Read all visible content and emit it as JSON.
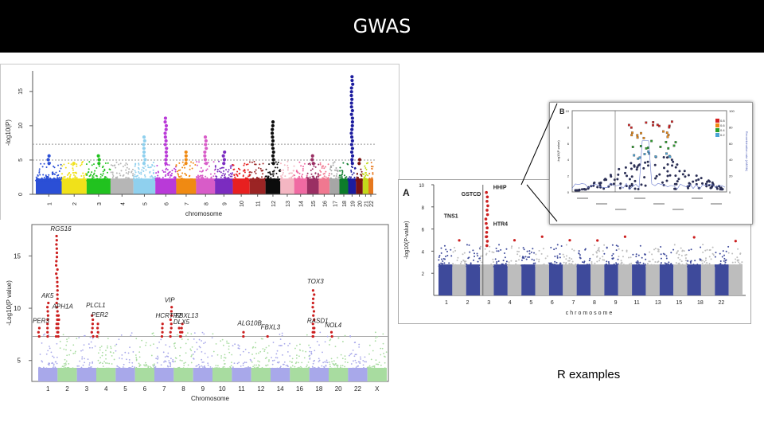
{
  "page": {
    "title": "GWAS",
    "caption": "R examples"
  },
  "colors": {
    "title_bg": "#000000",
    "title_fg": "#ffffff",
    "peak_red": "#cc1f1f",
    "blue": "#3e4a9b",
    "grey": "#bdbdbd"
  },
  "chart_data": [
    {
      "id": "panel-1",
      "type": "scatter",
      "subtype": "manhattan",
      "xlabel": "chromosome",
      "ylabel": "-log10(P)",
      "ylim": [
        0,
        18
      ],
      "yticks": [
        0,
        5,
        10,
        15
      ],
      "threshold_lines": [
        7.3,
        5
      ],
      "chromosomes": [
        "1",
        "2",
        "3",
        "4",
        "5",
        "6",
        "7",
        "8",
        "9",
        "10",
        "11",
        "12",
        "13",
        "14",
        "15",
        "16",
        "17",
        "18",
        "19",
        "20",
        "21",
        "22"
      ],
      "chromosome_colors": [
        "#2b4fd6",
        "#f0e11a",
        "#21c21f",
        "#b6b6b6",
        "#8fd0ee",
        "#b93ad8",
        "#f08a12",
        "#d85cc8",
        "#7b2cc0",
        "#e82020",
        "#9b2424",
        "#0c0c0c",
        "#f4b6c2",
        "#f06aa2",
        "#9a2f63",
        "#f07890",
        "#a6a6a6",
        "#0d7c2b",
        "#1c1c9e",
        "#7a1212",
        "#c3d91a",
        "#e6781e"
      ],
      "peaks": [
        {
          "chr": "1",
          "p": 5.8
        },
        {
          "chr": "2",
          "p": 4.8
        },
        {
          "chr": "3",
          "p": 5.8
        },
        {
          "chr": "5",
          "p": 8.4
        },
        {
          "chr": "6",
          "p": 11.2
        },
        {
          "chr": "7",
          "p": 6.5
        },
        {
          "chr": "8",
          "p": 8.8
        },
        {
          "chr": "9",
          "p": 6.2
        },
        {
          "chr": "12",
          "p": 11.0
        },
        {
          "chr": "15",
          "p": 6.0
        },
        {
          "chr": "19",
          "p": 17.4
        },
        {
          "chr": "20",
          "p": 5.5
        }
      ]
    },
    {
      "id": "panel-2",
      "type": "scatter",
      "subtype": "manhattan",
      "xlabel": "Chromosome",
      "ylabel": "-Log10(P value)",
      "ylim": [
        3,
        18
      ],
      "yticks": [
        5,
        10,
        15
      ],
      "threshold": 7.3,
      "x_tick_labels": [
        "1",
        "2",
        "3",
        "4",
        "5",
        "6",
        "7",
        "8",
        "9",
        "10",
        "11",
        "12",
        "14",
        "16",
        "18",
        "20",
        "22",
        "X"
      ],
      "hits": [
        {
          "label": "RGS16",
          "p": 17.0,
          "pos": 0.07
        },
        {
          "label": "AK5",
          "p": 10.6,
          "pos": 0.045
        },
        {
          "label": "APH1A",
          "p": 9.6,
          "pos": 0.075
        },
        {
          "label": "PER3",
          "p": 8.2,
          "pos": 0.02
        },
        {
          "label": "PLCL1",
          "p": 9.7,
          "pos": 0.17
        },
        {
          "label": "PER2",
          "p": 8.8,
          "pos": 0.185
        },
        {
          "label": "VIP",
          "p": 10.2,
          "pos": 0.39
        },
        {
          "label": "HCRTR2",
          "p": 8.7,
          "pos": 0.365
        },
        {
          "label": "FBXL13",
          "p": 8.7,
          "pos": 0.42
        },
        {
          "label": "DLX5",
          "p": 8.1,
          "pos": 0.415
        },
        {
          "label": "ALG10B",
          "p": 8.0,
          "pos": 0.595
        },
        {
          "label": "FBXL3",
          "p": 7.6,
          "pos": 0.66
        },
        {
          "label": "TOX3",
          "p": 12.0,
          "pos": 0.79
        },
        {
          "label": "RASD1",
          "p": 8.2,
          "pos": 0.79
        },
        {
          "label": "NOL4",
          "p": 7.8,
          "pos": 0.84
        }
      ]
    },
    {
      "id": "panel-3",
      "type": "scatter",
      "subtype": "manhattan",
      "panel_label": "A",
      "xlabel": "chromosome",
      "ylabel": "-log10(P-value)",
      "ylim": [
        0,
        10
      ],
      "yticks": [
        2,
        4,
        6,
        8,
        10
      ],
      "x_tick_labels": [
        "1",
        "2",
        "3",
        "4",
        "5",
        "6",
        "7",
        "8",
        "9",
        "11",
        "13",
        "15",
        "18",
        "22"
      ],
      "gene_labels": [
        "HHIP",
        "GSTCD",
        "TNS1",
        "HTR4"
      ],
      "peak_chromosome": "4",
      "peak_p": 9.5
    },
    {
      "id": "panel-3b",
      "type": "scatter",
      "subtype": "regional",
      "panel_label": "B",
      "xlabel": "",
      "ylabel": "-log10(P-value)",
      "ylim": [
        0,
        10
      ],
      "yticks": [
        0,
        2,
        4,
        6,
        8,
        10
      ],
      "y2label": "Recombination rate (cM/Mb)",
      "y2ticks": [
        0,
        20,
        40,
        60,
        80,
        100
      ],
      "legend": [
        "0.8",
        "0.6",
        "0.4",
        "0.2"
      ]
    }
  ]
}
